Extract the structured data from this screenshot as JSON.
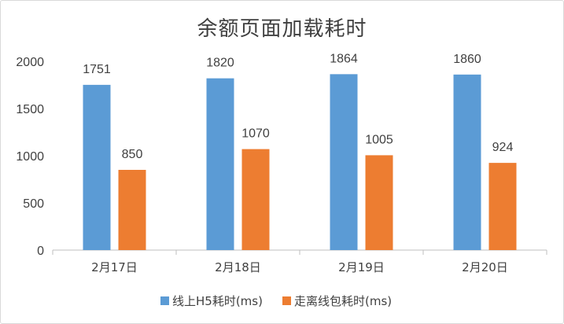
{
  "chart_data": {
    "type": "bar",
    "title": "余额页面加载耗时",
    "categories": [
      "2月17日",
      "2月18日",
      "2月19日",
      "2月20日"
    ],
    "series": [
      {
        "name": "线上H5耗时(ms)",
        "color": "#5b9bd5",
        "values": [
          1751,
          1820,
          1864,
          1860
        ]
      },
      {
        "name": "走离线包耗时(ms)",
        "color": "#ed7d31",
        "values": [
          850,
          1070,
          1005,
          924
        ]
      }
    ],
    "yticks": [
      0,
      500,
      1000,
      1500,
      2000
    ],
    "ylim": [
      0,
      2000
    ],
    "grid": false,
    "legend": "bottom"
  }
}
